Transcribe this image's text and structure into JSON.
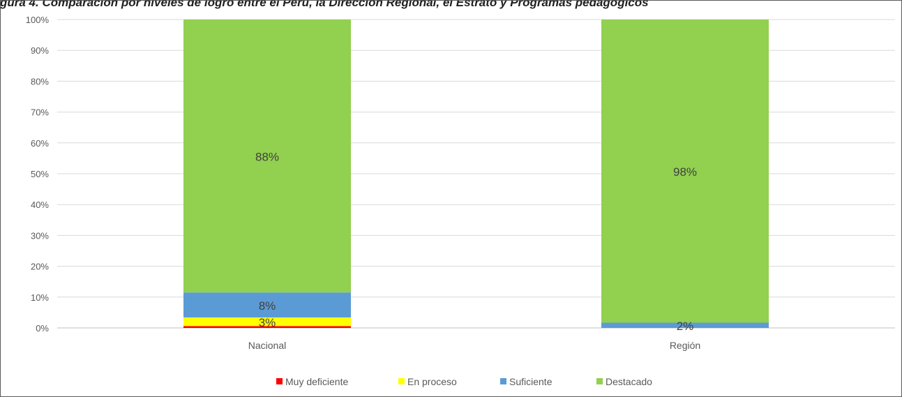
{
  "chart_data": {
    "type": "bar",
    "stacked": true,
    "normalized": true,
    "title": "gura 4. Comparación por niveles de logro entre el Perú, la Dirección Regional, el Estrato y Programas pedagógicos",
    "categories": [
      "Nacional",
      "Región"
    ],
    "series": [
      {
        "name": "Muy deficiente",
        "color": "#ff0000",
        "values": [
          0.6,
          0.0
        ]
      },
      {
        "name": "En proceso",
        "color": "#ffff00",
        "values": [
          2.8,
          0.0
        ]
      },
      {
        "name": "Suficiente",
        "color": "#5b9bd5",
        "values": [
          8.1,
          1.7
        ]
      },
      {
        "name": "Destacado",
        "color": "#92d050",
        "values": [
          88.5,
          98.3
        ]
      }
    ],
    "data_labels": [
      {
        "series": "En proceso",
        "category": "Nacional",
        "text": "3%"
      },
      {
        "series": "Suficiente",
        "category": "Nacional",
        "text": "8%"
      },
      {
        "series": "Destacado",
        "category": "Nacional",
        "text": "88%"
      },
      {
        "series": "Suficiente",
        "category": "Región",
        "text": "2%"
      },
      {
        "series": "Destacado",
        "category": "Región",
        "text": "98%"
      }
    ],
    "y_ticks": [
      "0%",
      "10%",
      "20%",
      "30%",
      "40%",
      "50%",
      "60%",
      "70%",
      "80%",
      "90%",
      "100%"
    ],
    "ylim": [
      0,
      100
    ],
    "grid": true,
    "legend_position": "bottom"
  }
}
